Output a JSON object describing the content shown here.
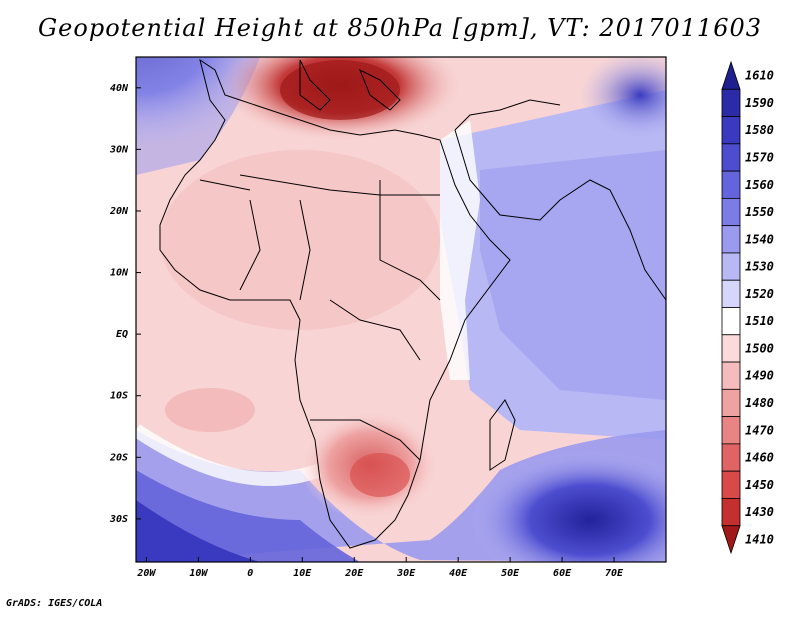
{
  "title": "Geopotential Height at 850hPa [gpm], VT: 2017011603",
  "credit": "GrADS: IGES/COLA",
  "axes": {
    "lon_ticks": [
      {
        "value": -20,
        "label": "20W"
      },
      {
        "value": -10,
        "label": "10W"
      },
      {
        "value": 0,
        "label": "0"
      },
      {
        "value": 10,
        "label": "10E"
      },
      {
        "value": 20,
        "label": "20E"
      },
      {
        "value": 30,
        "label": "30E"
      },
      {
        "value": 40,
        "label": "40E"
      },
      {
        "value": 50,
        "label": "50E"
      },
      {
        "value": 60,
        "label": "60E"
      },
      {
        "value": 70,
        "label": "70E"
      }
    ],
    "lat_ticks": [
      {
        "value": 40,
        "label": "40N"
      },
      {
        "value": 30,
        "label": "30N"
      },
      {
        "value": 20,
        "label": "20N"
      },
      {
        "value": 10,
        "label": "10N"
      },
      {
        "value": 0,
        "label": "EQ"
      },
      {
        "value": -10,
        "label": "10S"
      },
      {
        "value": -20,
        "label": "20S"
      },
      {
        "value": -30,
        "label": "30S"
      }
    ],
    "lon_range": [
      -22,
      80
    ],
    "lat_range": [
      -37,
      45
    ]
  },
  "colorbar": {
    "levels": [
      "1610",
      "1590",
      "1580",
      "1570",
      "1560",
      "1550",
      "1540",
      "1530",
      "1520",
      "1510",
      "1500",
      "1490",
      "1480",
      "1470",
      "1460",
      "1450",
      "1430",
      "1410"
    ],
    "colors": [
      "#1f1f8f",
      "#2b2ba8",
      "#3a3ac0",
      "#4d4dd0",
      "#6464dc",
      "#7c7ce6",
      "#9a9aee",
      "#b8b8f4",
      "#d6d6fa",
      "#ffffff",
      "#fadada",
      "#f4bcbc",
      "#eea2a2",
      "#e88484",
      "#e06464",
      "#d84a4a",
      "#c43030",
      "#a01818"
    ]
  }
}
